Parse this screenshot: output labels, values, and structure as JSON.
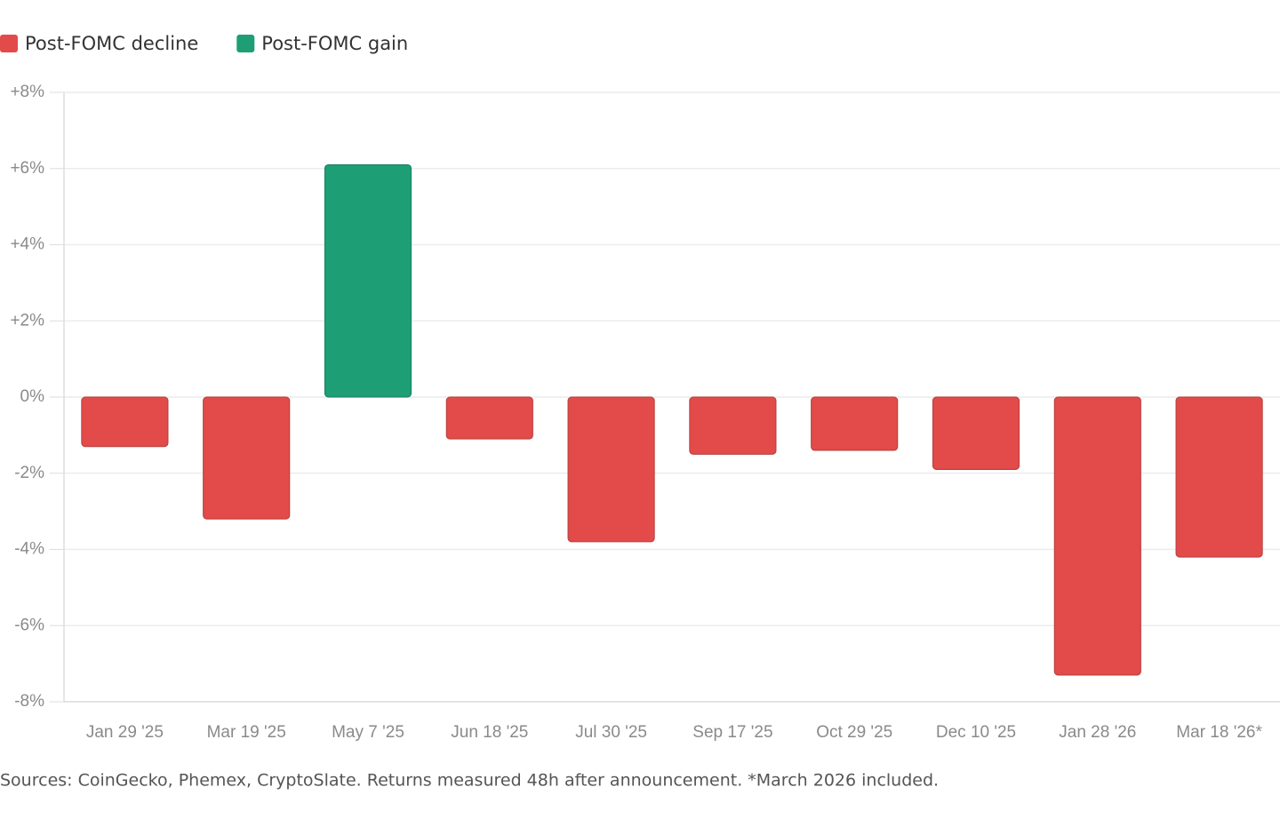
{
  "chart_data": {
    "type": "bar",
    "categories": [
      "Jan 29 '25",
      "Mar 19 '25",
      "May 7 '25",
      "Jun 18 '25",
      "Jul 30 '25",
      "Sep 17 '25",
      "Oct 29 '25",
      "Dec 10 '25",
      "Jan 28 '26",
      "Mar 18 '26*"
    ],
    "series": [
      {
        "name": "Post-FOMC decline",
        "color": "#e24b4a",
        "values": [
          -1.3,
          -3.2,
          null,
          -1.1,
          -3.8,
          -1.5,
          -1.4,
          -1.9,
          -7.3,
          -4.2
        ]
      },
      {
        "name": "Post-FOMC gain",
        "color": "#1e9e74",
        "values": [
          null,
          null,
          6.1,
          null,
          null,
          null,
          null,
          null,
          null,
          null
        ]
      }
    ],
    "ylim": [
      -8,
      8
    ],
    "yticks": [
      {
        "value": 8,
        "label": "+8%"
      },
      {
        "value": 6,
        "label": "+6%"
      },
      {
        "value": 4,
        "label": "+4%"
      },
      {
        "value": 2,
        "label": "+2%"
      },
      {
        "value": 0,
        "label": "0%"
      },
      {
        "value": -2,
        "label": "-2%"
      },
      {
        "value": -4,
        "label": "-4%"
      },
      {
        "value": -6,
        "label": "-6%"
      },
      {
        "value": -8,
        "label": "-8%"
      }
    ],
    "grid": true,
    "legend": "top-left",
    "footnote": "Sources: CoinGecko, Phemex, CryptoSlate. Returns measured 48h after announcement. *March 2026 included."
  }
}
